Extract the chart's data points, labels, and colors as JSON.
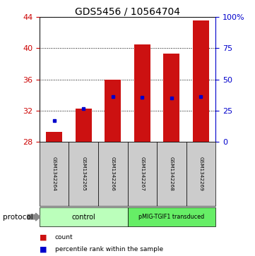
{
  "title": "GDS5456 / 10564704",
  "samples": [
    "GSM1342264",
    "GSM1342265",
    "GSM1342266",
    "GSM1342267",
    "GSM1342268",
    "GSM1342269"
  ],
  "counts": [
    29.3,
    32.3,
    36.0,
    40.5,
    39.3,
    43.5
  ],
  "bar_bottom": 28.0,
  "percentile_ranks_pct": [
    17.0,
    26.5,
    36.5,
    35.5,
    35.0,
    36.0
  ],
  "ylim_left": [
    28,
    44
  ],
  "ylim_right": [
    0,
    100
  ],
  "yticks_left": [
    28,
    32,
    36,
    40,
    44
  ],
  "yticks_right": [
    0,
    25,
    50,
    75,
    100
  ],
  "left_axis_color": "#cc0000",
  "right_axis_color": "#0000cc",
  "bar_color": "#cc1111",
  "marker_color": "#0000cc",
  "bar_width": 0.55,
  "groups": [
    {
      "label": "control",
      "n_samples": 3,
      "color": "#bbffbb"
    },
    {
      "label": "pMIG-TGIF1 transduced",
      "n_samples": 3,
      "color": "#66ee66"
    }
  ],
  "protocol_label": "protocol",
  "legend_count_label": "count",
  "legend_percentile_label": "percentile rank within the sample",
  "tick_label_area_color": "#cccccc",
  "grid_linestyle": ":",
  "grid_color": "#555555"
}
